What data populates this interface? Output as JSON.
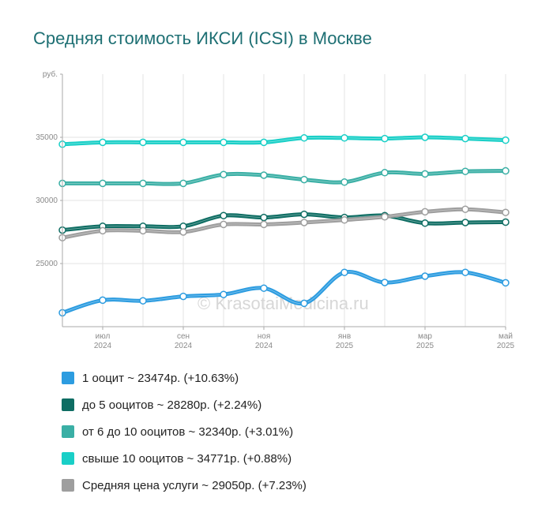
{
  "title": "Средняя стоимость ИКСИ (ICSI) в Москве",
  "watermark": "© KrasotaiMedicina.ru",
  "colors": {
    "title": "#1d6f73",
    "grid": "#e3e3e3",
    "axis": "#aaaaaa"
  },
  "chart_data": {
    "type": "line",
    "title": "Средняя стоимость ИКСИ (ICSI) в Москве",
    "ylabel": "руб.",
    "xlabel": "",
    "ylim": [
      20000,
      40000
    ],
    "yticks": [
      25000,
      30000,
      35000
    ],
    "grid": true,
    "legend_placement": "bottom",
    "x_ticks": [
      {
        "month": "июл",
        "year": "2024",
        "i": 1
      },
      {
        "month": "сен",
        "year": "2024",
        "i": 3
      },
      {
        "month": "ноя",
        "year": "2024",
        "i": 5
      },
      {
        "month": "янв",
        "year": "2025",
        "i": 7
      },
      {
        "month": "мар",
        "year": "2025",
        "i": 9
      },
      {
        "month": "май",
        "year": "2025",
        "i": 11
      }
    ],
    "x": [
      "2024-06",
      "2024-07",
      "2024-08",
      "2024-09",
      "2024-10",
      "2024-11",
      "2024-12",
      "2025-01",
      "2025-02",
      "2025-03",
      "2025-04",
      "2025-05"
    ],
    "series": [
      {
        "name": "1 ооцит",
        "summary": "1 ооцит ~ 23474р. (+10.63%)",
        "color": "#2c9ce0",
        "values": [
          21100,
          22100,
          22050,
          22400,
          22550,
          23050,
          21850,
          24300,
          23500,
          24000,
          24300,
          23474
        ]
      },
      {
        "name": "до 5 ооцитов",
        "summary": "до 5 ооцитов ~ 28280р. (+2.24%)",
        "color": "#0e6d63",
        "values": [
          27650,
          27950,
          27950,
          27950,
          28800,
          28650,
          28900,
          28650,
          28800,
          28200,
          28250,
          28280
        ]
      },
      {
        "name": "от 6 до 10 ооцитов",
        "summary": "от 6 до 10 ооцитов ~ 32340р. (+3.01%)",
        "color": "#3aafa5",
        "values": [
          31350,
          31350,
          31350,
          31350,
          32050,
          32000,
          31650,
          31450,
          32200,
          32100,
          32300,
          32340
        ]
      },
      {
        "name": "свыше 10 ооцитов",
        "summary": "свыше 10 ооцитов ~ 34771р. (+0.88%)",
        "color": "#19cfc7",
        "values": [
          34450,
          34600,
          34600,
          34600,
          34600,
          34600,
          34950,
          34950,
          34900,
          35000,
          34900,
          34771
        ]
      },
      {
        "name": "Средняя цена услуги",
        "summary": "Средняя цена услуги ~ 29050р. (+7.23%)",
        "color": "#9e9e9e",
        "values": [
          27050,
          27600,
          27600,
          27500,
          28100,
          28100,
          28250,
          28450,
          28700,
          29100,
          29300,
          29050
        ]
      }
    ]
  }
}
